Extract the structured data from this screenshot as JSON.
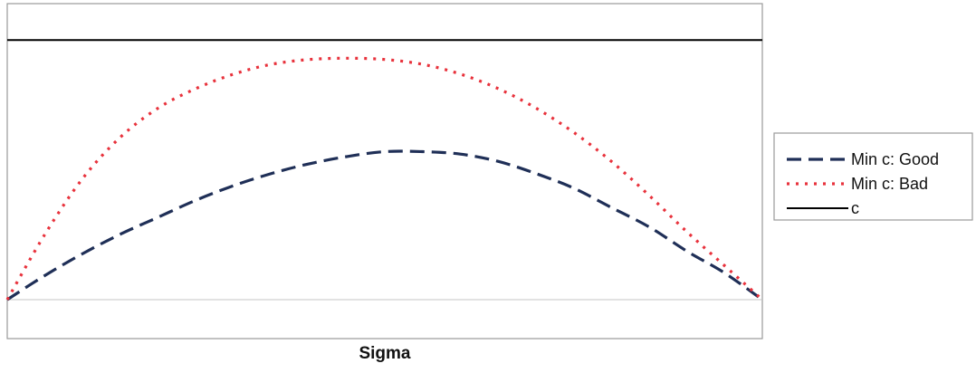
{
  "chart_data": {
    "type": "line",
    "title": "",
    "xlabel": "Sigma",
    "ylabel": "",
    "x": [
      0,
      0.05,
      0.1,
      0.15,
      0.2,
      0.25,
      0.3,
      0.35,
      0.4,
      0.45,
      0.5,
      0.55,
      0.6,
      0.65,
      0.7,
      0.75,
      0.8,
      0.85,
      0.9,
      0.95,
      1
    ],
    "xlim": [
      0,
      1
    ],
    "ylim": [
      0,
      1
    ],
    "grid": false,
    "legend_position": "right",
    "series": [
      {
        "name": "Min c: Good",
        "color": "#1f2f57",
        "style": "dashed",
        "values": [
          0,
          0.1,
          0.19,
          0.27,
          0.34,
          0.41,
          0.47,
          0.52,
          0.56,
          0.59,
          0.61,
          0.61,
          0.6,
          0.57,
          0.52,
          0.46,
          0.38,
          0.3,
          0.2,
          0.11,
          0
        ]
      },
      {
        "name": "Min c: Bad",
        "color": "#e8323c",
        "style": "dotted",
        "values": [
          0,
          0.27,
          0.5,
          0.67,
          0.79,
          0.87,
          0.93,
          0.97,
          0.99,
          0.995,
          0.99,
          0.97,
          0.93,
          0.87,
          0.79,
          0.69,
          0.57,
          0.43,
          0.28,
          0.14,
          0
        ]
      },
      {
        "name": "c",
        "color": "#000000",
        "style": "solid",
        "values": [
          1.07,
          1.07,
          1.07,
          1.07,
          1.07,
          1.07,
          1.07,
          1.07,
          1.07,
          1.07,
          1.07,
          1.07,
          1.07,
          1.07,
          1.07,
          1.07,
          1.07,
          1.07,
          1.07,
          1.07,
          1.07
        ]
      }
    ]
  }
}
